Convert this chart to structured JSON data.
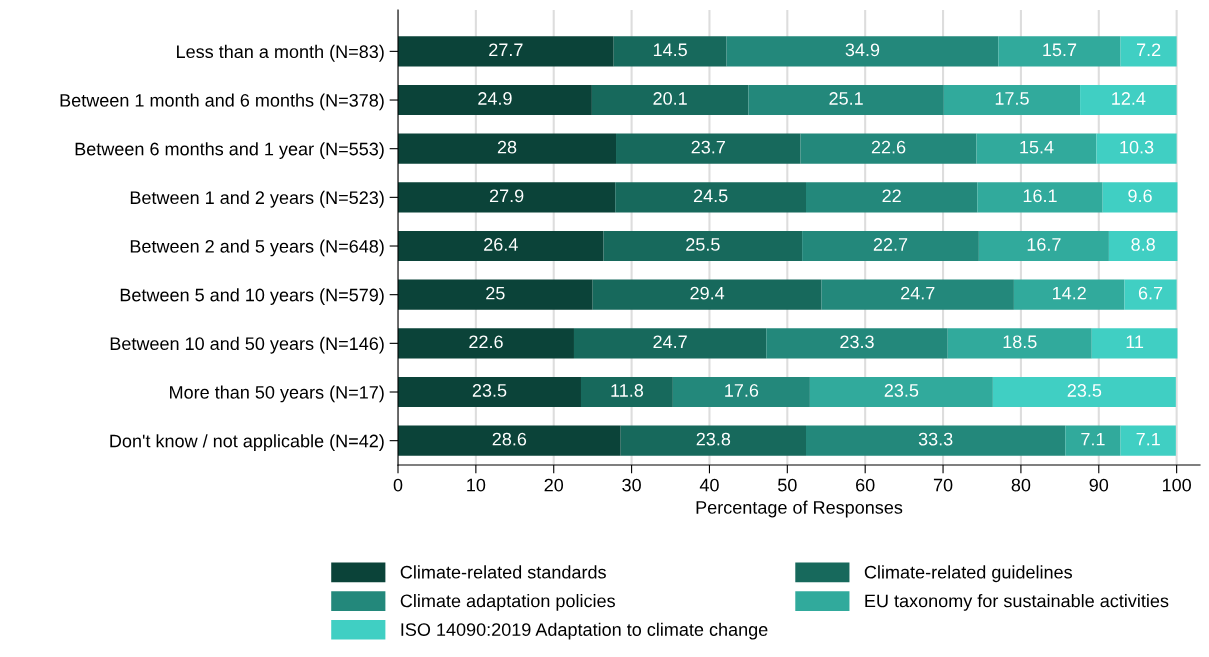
{
  "chart_data": {
    "type": "bar",
    "orientation": "horizontal",
    "stacked": true,
    "data_labels": true,
    "xlabel": "Percentage of Responses",
    "categories": [
      "Less than a month (N=83)",
      "Between 1 month and 6 months (N=378)",
      "Between 6 months and 1 year (N=553)",
      "Between 1 and 2 years (N=523)",
      "Between 2 and 5 years (N=648)",
      "Between 5 and 10 years (N=579)",
      "Between 10 and 50 years (N=146)",
      "More than 50 years (N=17)",
      "Don't know / not applicable (N=42)"
    ],
    "series": [
      {
        "name": "Climate-related standards",
        "color": "#0b4339",
        "values": [
          27.7,
          24.9,
          28,
          27.9,
          26.4,
          25,
          22.6,
          23.5,
          28.6
        ]
      },
      {
        "name": "Climate-related guidelines",
        "color": "#17695c",
        "values": [
          14.5,
          20.1,
          23.7,
          24.5,
          25.5,
          29.4,
          24.7,
          11.8,
          23.8
        ]
      },
      {
        "name": "Climate adaptation policies",
        "color": "#23887b",
        "values": [
          34.9,
          25.1,
          22.6,
          22,
          22.7,
          24.7,
          23.3,
          17.6,
          33.3
        ]
      },
      {
        "name": "EU taxonomy for sustainable activities",
        "color": "#31aa9c",
        "values": [
          15.7,
          17.5,
          15.4,
          16.1,
          16.7,
          14.2,
          18.5,
          23.5,
          7.1
        ]
      },
      {
        "name": "ISO 14090:2019 Adaptation to climate change",
        "color": "#40cfc3",
        "values": [
          7.2,
          12.4,
          10.3,
          9.6,
          8.8,
          6.7,
          11,
          23.5,
          7.1
        ]
      }
    ],
    "xlim": [
      0,
      103
    ],
    "xticks": [
      0,
      10,
      20,
      30,
      40,
      50,
      60,
      70,
      80,
      90,
      100
    ],
    "grid": "x",
    "legend": "bottom"
  }
}
